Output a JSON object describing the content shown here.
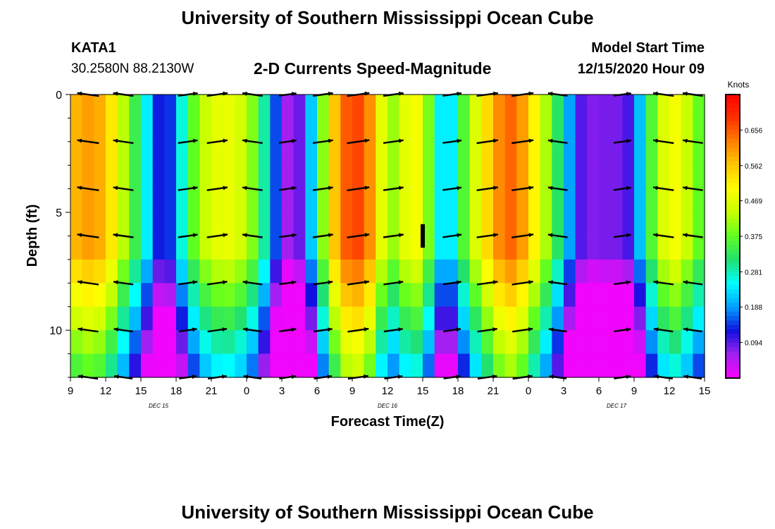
{
  "header": {
    "title": "University of Southern Mississippi Ocean Cube",
    "station": "KATA1",
    "coords": "30.2580N 88.2130W",
    "subtitle": "2-D Currents Speed-Magnitude",
    "model_label": "Model Start Time",
    "model_time": "12/15/2020 Hour 09"
  },
  "footer": {
    "title": "University of Southern Mississippi Ocean Cube"
  },
  "colors": {
    "colormap": [
      "#ff00ff",
      "#a020f0",
      "#1010e0",
      "#00a0ff",
      "#00ffff",
      "#20e070",
      "#60ff20",
      "#c8ff00",
      "#ffff00",
      "#ffc800",
      "#ff8000",
      "#ff3000",
      "#ff0000"
    ]
  },
  "chart_data": {
    "type": "heatmap",
    "xlabel": "Forecast Time(Z)",
    "ylabel": "Depth (ft)",
    "colorbar_unit": "Knots",
    "colorbar_ticks": [
      "0.656",
      "0.562",
      "0.469",
      "0.375",
      "0.281",
      "0.188",
      "0.094"
    ],
    "colorbar_range": [
      0,
      0.75
    ],
    "x_tick_labels": [
      "9",
      "12",
      "15",
      "18",
      "21",
      "0",
      "3",
      "6",
      "9",
      "12",
      "15",
      "18",
      "21",
      "0",
      "3",
      "6",
      "9",
      "12",
      "15"
    ],
    "date_labels": [
      "DEC 15",
      "DEC 16",
      "DEC 17"
    ],
    "y_ticks": [
      0,
      5,
      10
    ],
    "y_range": [
      0,
      12
    ],
    "x_range_hours": [
      0,
      54
    ],
    "time_speed_profile": [
      [
        0,
        0.56
      ],
      [
        1,
        0.6
      ],
      [
        2,
        0.6
      ],
      [
        3,
        0.57
      ],
      [
        4,
        0.48
      ],
      [
        5,
        0.38
      ],
      [
        6,
        0.3
      ],
      [
        7,
        0.18
      ],
      [
        8,
        0.08
      ],
      [
        9,
        0.2
      ],
      [
        10,
        0.33
      ],
      [
        11,
        0.42
      ],
      [
        12,
        0.46
      ],
      [
        13,
        0.48
      ],
      [
        14,
        0.47
      ],
      [
        15,
        0.43
      ],
      [
        16,
        0.36
      ],
      [
        17,
        0.22
      ],
      [
        18,
        0.08
      ],
      [
        19,
        0.04
      ],
      [
        20,
        0.13
      ],
      [
        21,
        0.3
      ],
      [
        22,
        0.5
      ],
      [
        23,
        0.63
      ],
      [
        24,
        0.68
      ],
      [
        25,
        0.66
      ],
      [
        26,
        0.56
      ],
      [
        27,
        0.38
      ],
      [
        28,
        0.44
      ],
      [
        29,
        0.5
      ],
      [
        30,
        0.48
      ],
      [
        31,
        0.3
      ],
      [
        32,
        0.18
      ],
      [
        33,
        0.3
      ],
      [
        34,
        0.42
      ],
      [
        35,
        0.5
      ],
      [
        36,
        0.58
      ],
      [
        37,
        0.65
      ],
      [
        38,
        0.64
      ],
      [
        39,
        0.56
      ],
      [
        40,
        0.46
      ],
      [
        41,
        0.38
      ],
      [
        42,
        0.26
      ],
      [
        43,
        0.12
      ],
      [
        44,
        0.07
      ],
      [
        45,
        0.08
      ],
      [
        46,
        0.08
      ],
      [
        47,
        0.08
      ],
      [
        48,
        0.12
      ],
      [
        49,
        0.3
      ],
      [
        50,
        0.42
      ],
      [
        51,
        0.5
      ],
      [
        52,
        0.48
      ],
      [
        53,
        0.4
      ],
      [
        54,
        0.35
      ]
    ],
    "vector_times": [
      1.5,
      4.5,
      10,
      12.5,
      15.5,
      18.5,
      21.5,
      24.5,
      27.5,
      32.5,
      35.5,
      38.5,
      41.5,
      47,
      50.5,
      53
    ],
    "vector_depths": [
      0,
      2,
      4,
      6,
      8,
      10,
      12
    ]
  }
}
